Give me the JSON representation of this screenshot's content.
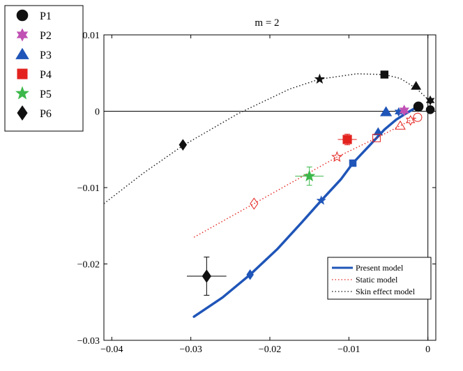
{
  "chart_data": {
    "type": "scatter",
    "title": "m = 2",
    "xlabel": "",
    "ylabel": "",
    "xlim": [
      -0.041,
      0.001
    ],
    "ylim": [
      -0.03,
      0.01
    ],
    "x_ticks": [
      -0.04,
      -0.03,
      -0.02,
      -0.01,
      0
    ],
    "x_tick_labels": [
      "−0.04",
      "−0.03",
      "−0.02",
      "−0.01",
      "0"
    ],
    "y_ticks": [
      -0.03,
      -0.02,
      -0.01,
      0,
      0.01
    ],
    "y_tick_labels": [
      "−0.03",
      "−0.02",
      "−0.01",
      "0",
      "0.01"
    ],
    "grid": false,
    "zero_line": 0,
    "marker_legend": [
      {
        "label": "P1",
        "shape": "circle",
        "color": "#111111"
      },
      {
        "label": "P2",
        "shape": "hexstar",
        "color": "#c050b4"
      },
      {
        "label": "P3",
        "shape": "triangle",
        "color": "#1f55b8"
      },
      {
        "label": "P4",
        "shape": "square",
        "color": "#e3221e"
      },
      {
        "label": "P5",
        "shape": "star",
        "color": "#3cb84a"
      },
      {
        "label": "P6",
        "shape": "diamond",
        "color": "#111111"
      }
    ],
    "line_legend": [
      {
        "label": "Present model",
        "style": "solid",
        "color": "#1f55b8"
      },
      {
        "label": "Static model",
        "style": "dotted",
        "color": "#e3221e"
      },
      {
        "label": "Skin effect model",
        "style": "dotted",
        "color": "#111111"
      }
    ],
    "series": [
      {
        "name": "Present model",
        "style": "solid",
        "color": "#1f55b8",
        "x": [
          -0.0296,
          -0.026,
          -0.0225,
          -0.019,
          -0.016,
          -0.0135,
          -0.011,
          -0.0095,
          -0.0075,
          -0.0055,
          -0.004,
          -0.0028,
          -0.0018,
          -0.0012,
          -0.001
        ],
        "y": [
          -0.0269,
          -0.0244,
          -0.0214,
          -0.018,
          -0.0146,
          -0.0117,
          -0.0089,
          -0.0068,
          -0.0046,
          -0.0024,
          -0.0011,
          -0.0003,
          0.0003,
          0.0006,
          0.0007
        ],
        "markers": [
          {
            "x": -0.0225,
            "y": -0.0214,
            "shape": "diamond"
          },
          {
            "x": -0.0135,
            "y": -0.0117,
            "shape": "star"
          },
          {
            "x": -0.0095,
            "y": -0.0068,
            "shape": "square"
          },
          {
            "x": -0.0063,
            "y": -0.0027,
            "shape": "triangle"
          },
          {
            "x": -0.0037,
            "y": -0.0001,
            "shape": "hexstar"
          },
          {
            "x": -0.0012,
            "y": 0.0006,
            "shape": "circle"
          }
        ]
      },
      {
        "name": "Static model",
        "style": "dotted",
        "color": "#e3221e",
        "x": [
          -0.0296,
          -0.022,
          -0.0115,
          -0.0065,
          -0.0035,
          -0.0022,
          -0.0013
        ],
        "y": [
          -0.0165,
          -0.0121,
          -0.006,
          -0.0035,
          -0.0019,
          -0.0012,
          -0.0008
        ],
        "markers": [
          {
            "x": -0.022,
            "y": -0.0121,
            "shape": "diamond"
          },
          {
            "x": -0.0115,
            "y": -0.006,
            "shape": "star"
          },
          {
            "x": -0.0065,
            "y": -0.0035,
            "shape": "square"
          },
          {
            "x": -0.0035,
            "y": -0.0019,
            "shape": "triangle"
          },
          {
            "x": -0.0022,
            "y": -0.0012,
            "shape": "hexstar"
          },
          {
            "x": -0.0013,
            "y": -0.0008,
            "shape": "circle"
          }
        ]
      },
      {
        "name": "Skin effect model",
        "style": "dotted",
        "color": "#111111",
        "x": [
          -0.041,
          -0.036,
          -0.031,
          -0.024,
          -0.0175,
          -0.0137,
          -0.009,
          -0.0055,
          -0.0035,
          -0.0015,
          0.0003
        ],
        "y": [
          -0.0121,
          -0.0081,
          -0.0045,
          -0.0003,
          0.0029,
          0.0042,
          0.0049,
          0.0048,
          0.0043,
          0.003,
          0.0013
        ],
        "markers": [
          {
            "x": -0.031,
            "y": -0.0044,
            "shape": "diamond"
          },
          {
            "x": -0.0137,
            "y": 0.0042,
            "shape": "star"
          },
          {
            "x": -0.0055,
            "y": 0.0048,
            "shape": "square"
          },
          {
            "x": -0.0015,
            "y": 0.0033,
            "shape": "triangle"
          },
          {
            "x": 0.0003,
            "y": 0.0014,
            "shape": "hexstar"
          },
          {
            "x": 0.0003,
            "y": 0.0002,
            "shape": "circle"
          }
        ]
      }
    ],
    "experimental_points": [
      {
        "name": "P1",
        "x": -0.0012,
        "y": 0.0006,
        "shape": "circle",
        "color": "#111111",
        "xerr": 0,
        "yerr": 0
      },
      {
        "name": "P2",
        "x": -0.003,
        "y": 0.0001,
        "shape": "hexstar",
        "color": "#c050b4",
        "xerr": 0,
        "yerr": 0
      },
      {
        "name": "P3",
        "x": -0.0053,
        "y": -0.0001,
        "shape": "triangle",
        "color": "#1f55b8",
        "xerr": 0,
        "yerr": 0
      },
      {
        "name": "P4",
        "x": -0.0102,
        "y": -0.0037,
        "shape": "square",
        "color": "#e3221e",
        "xerr": 0.0012,
        "yerr": 0.0007
      },
      {
        "name": "P5",
        "x": -0.015,
        "y": -0.0085,
        "shape": "star",
        "color": "#3cb84a",
        "xerr": 0.0018,
        "yerr": 0.0012
      },
      {
        "name": "P6",
        "x": -0.028,
        "y": -0.0216,
        "shape": "diamond",
        "color": "#111111",
        "xerr": 0.0025,
        "yerr": 0.0025
      }
    ]
  }
}
